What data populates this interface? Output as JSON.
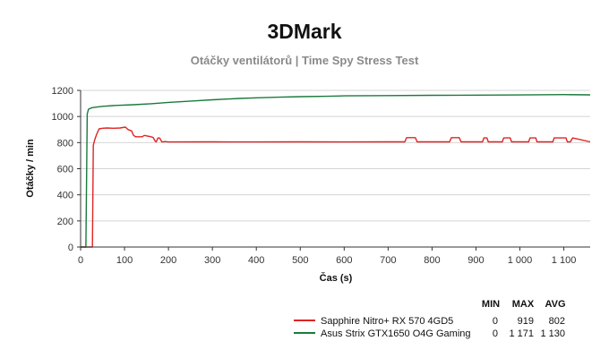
{
  "chart_data": {
    "type": "line",
    "title": "3DMark",
    "subtitle": "Otáčky ventilátorů | Time Spy Stress Test",
    "xlabel": "Čas (s)",
    "ylabel": "Otáčky / min",
    "xlim": [
      0,
      1160
    ],
    "ylim": [
      0,
      1200
    ],
    "xticks": [
      0,
      100,
      200,
      300,
      400,
      500,
      600,
      700,
      800,
      900,
      1000,
      1100
    ],
    "xtick_labels": [
      "0",
      "100",
      "200",
      "300",
      "400",
      "500",
      "600",
      "700",
      "800",
      "900",
      "1 000",
      "1 100"
    ],
    "yticks": [
      0,
      200,
      400,
      600,
      800,
      1000,
      1200
    ],
    "ytick_labels": [
      "0",
      "200",
      "400",
      "600",
      "800",
      "1000",
      "1200"
    ],
    "grid": "horizontal",
    "legend_position": "bottom-right",
    "legend_headers": [
      "MIN",
      "MAX",
      "AVG"
    ],
    "series": [
      {
        "name": "Sapphire Nitro+ RX 570  4GD5",
        "color": "#e02424",
        "min": "0",
        "max": "919",
        "avg": "802",
        "x": [
          0,
          27,
          29,
          32,
          36,
          42,
          50,
          60,
          75,
          90,
          102,
          108,
          116,
          120,
          125,
          140,
          145,
          160,
          165,
          170,
          172,
          176,
          180,
          185,
          192,
          200,
          300,
          400,
          500,
          600,
          700,
          738,
          742,
          762,
          766,
          800,
          840,
          844,
          862,
          866,
          915,
          918,
          925,
          928,
          960,
          963,
          978,
          981,
          1020,
          1023,
          1036,
          1039,
          1075,
          1078,
          1105,
          1108,
          1115,
          1120,
          1160
        ],
        "y": [
          0,
          0,
          780,
          820,
          860,
          905,
          910,
          912,
          910,
          912,
          919,
          900,
          890,
          858,
          845,
          845,
          855,
          845,
          840,
          810,
          805,
          835,
          835,
          805,
          808,
          805,
          806,
          805,
          806,
          805,
          806,
          806,
          838,
          838,
          806,
          806,
          806,
          838,
          838,
          806,
          806,
          836,
          836,
          806,
          806,
          836,
          836,
          806,
          806,
          836,
          836,
          806,
          806,
          836,
          836,
          806,
          806,
          836,
          806
        ]
      },
      {
        "name": "Asus Strix GTX1650 O4G Gaming",
        "color": "#1a7a3c",
        "min": "0",
        "max": "1 171",
        "avg": "1 130",
        "x": [
          0,
          12,
          15,
          18,
          22,
          26,
          35,
          50,
          80,
          120,
          160,
          200,
          260,
          300,
          360,
          400,
          450,
          500,
          560,
          600,
          700,
          800,
          900,
          1000,
          1100,
          1160
        ],
        "y": [
          0,
          0,
          1020,
          1055,
          1062,
          1068,
          1072,
          1078,
          1085,
          1090,
          1098,
          1108,
          1120,
          1128,
          1138,
          1143,
          1148,
          1152,
          1155,
          1158,
          1160,
          1162,
          1164,
          1165,
          1168,
          1166
        ]
      }
    ]
  }
}
